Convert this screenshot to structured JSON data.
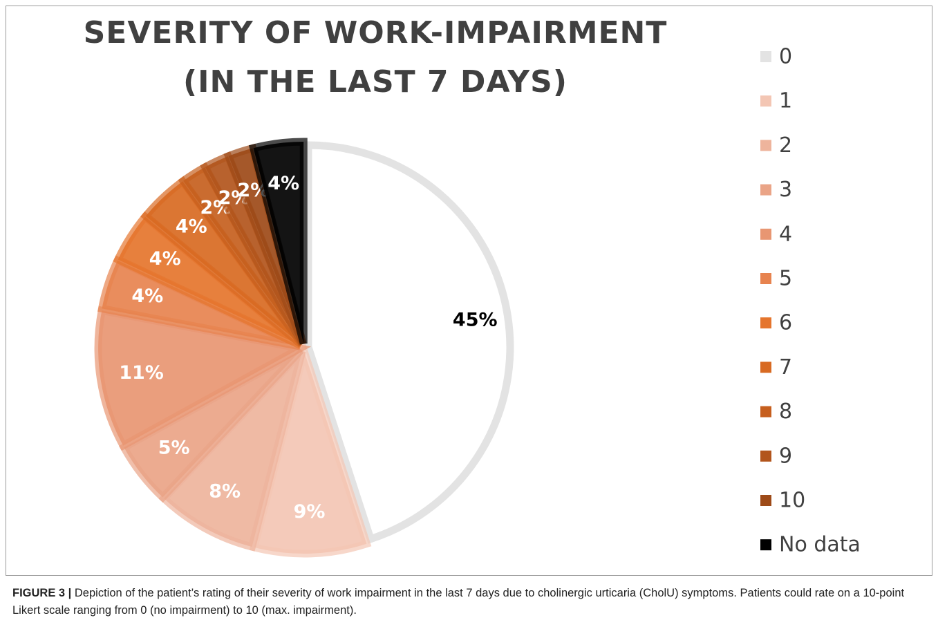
{
  "chart_data": {
    "type": "pie",
    "title": [
      "SEVERITY OF WORK-IMPAIRMENT",
      "(IN THE LAST 7 DAYS)"
    ],
    "categories": [
      "0",
      "1",
      "2",
      "3",
      "4",
      "5",
      "6",
      "7",
      "8",
      "9",
      "10",
      "No data"
    ],
    "values": [
      45,
      9,
      8,
      5,
      11,
      4,
      4,
      4,
      2,
      2,
      2,
      4
    ],
    "value_labels": [
      "45%",
      "9%",
      "8%",
      "5%",
      "11%",
      "4%",
      "4%",
      "4%",
      "2%",
      "2%",
      "2%",
      "4%"
    ],
    "colors": [
      "#e3e3e3",
      "#f3c6b4",
      "#eeb49c",
      "#eaa487",
      "#e89672",
      "#e7834f",
      "#e5752d",
      "#d86a22",
      "#c65f1e",
      "#b2551c",
      "#9d4a18",
      "#000000"
    ],
    "legend": "right"
  },
  "caption": {
    "label": "FIGURE 3 |",
    "text": "Depiction of the patient’s rating of their severity of work impairment in the last 7 days due to cholinergic urticaria (CholU) symptoms. Patients could rate on a 10-point Likert scale ranging from 0 (no impairment) to 10 (max. impairment)."
  }
}
